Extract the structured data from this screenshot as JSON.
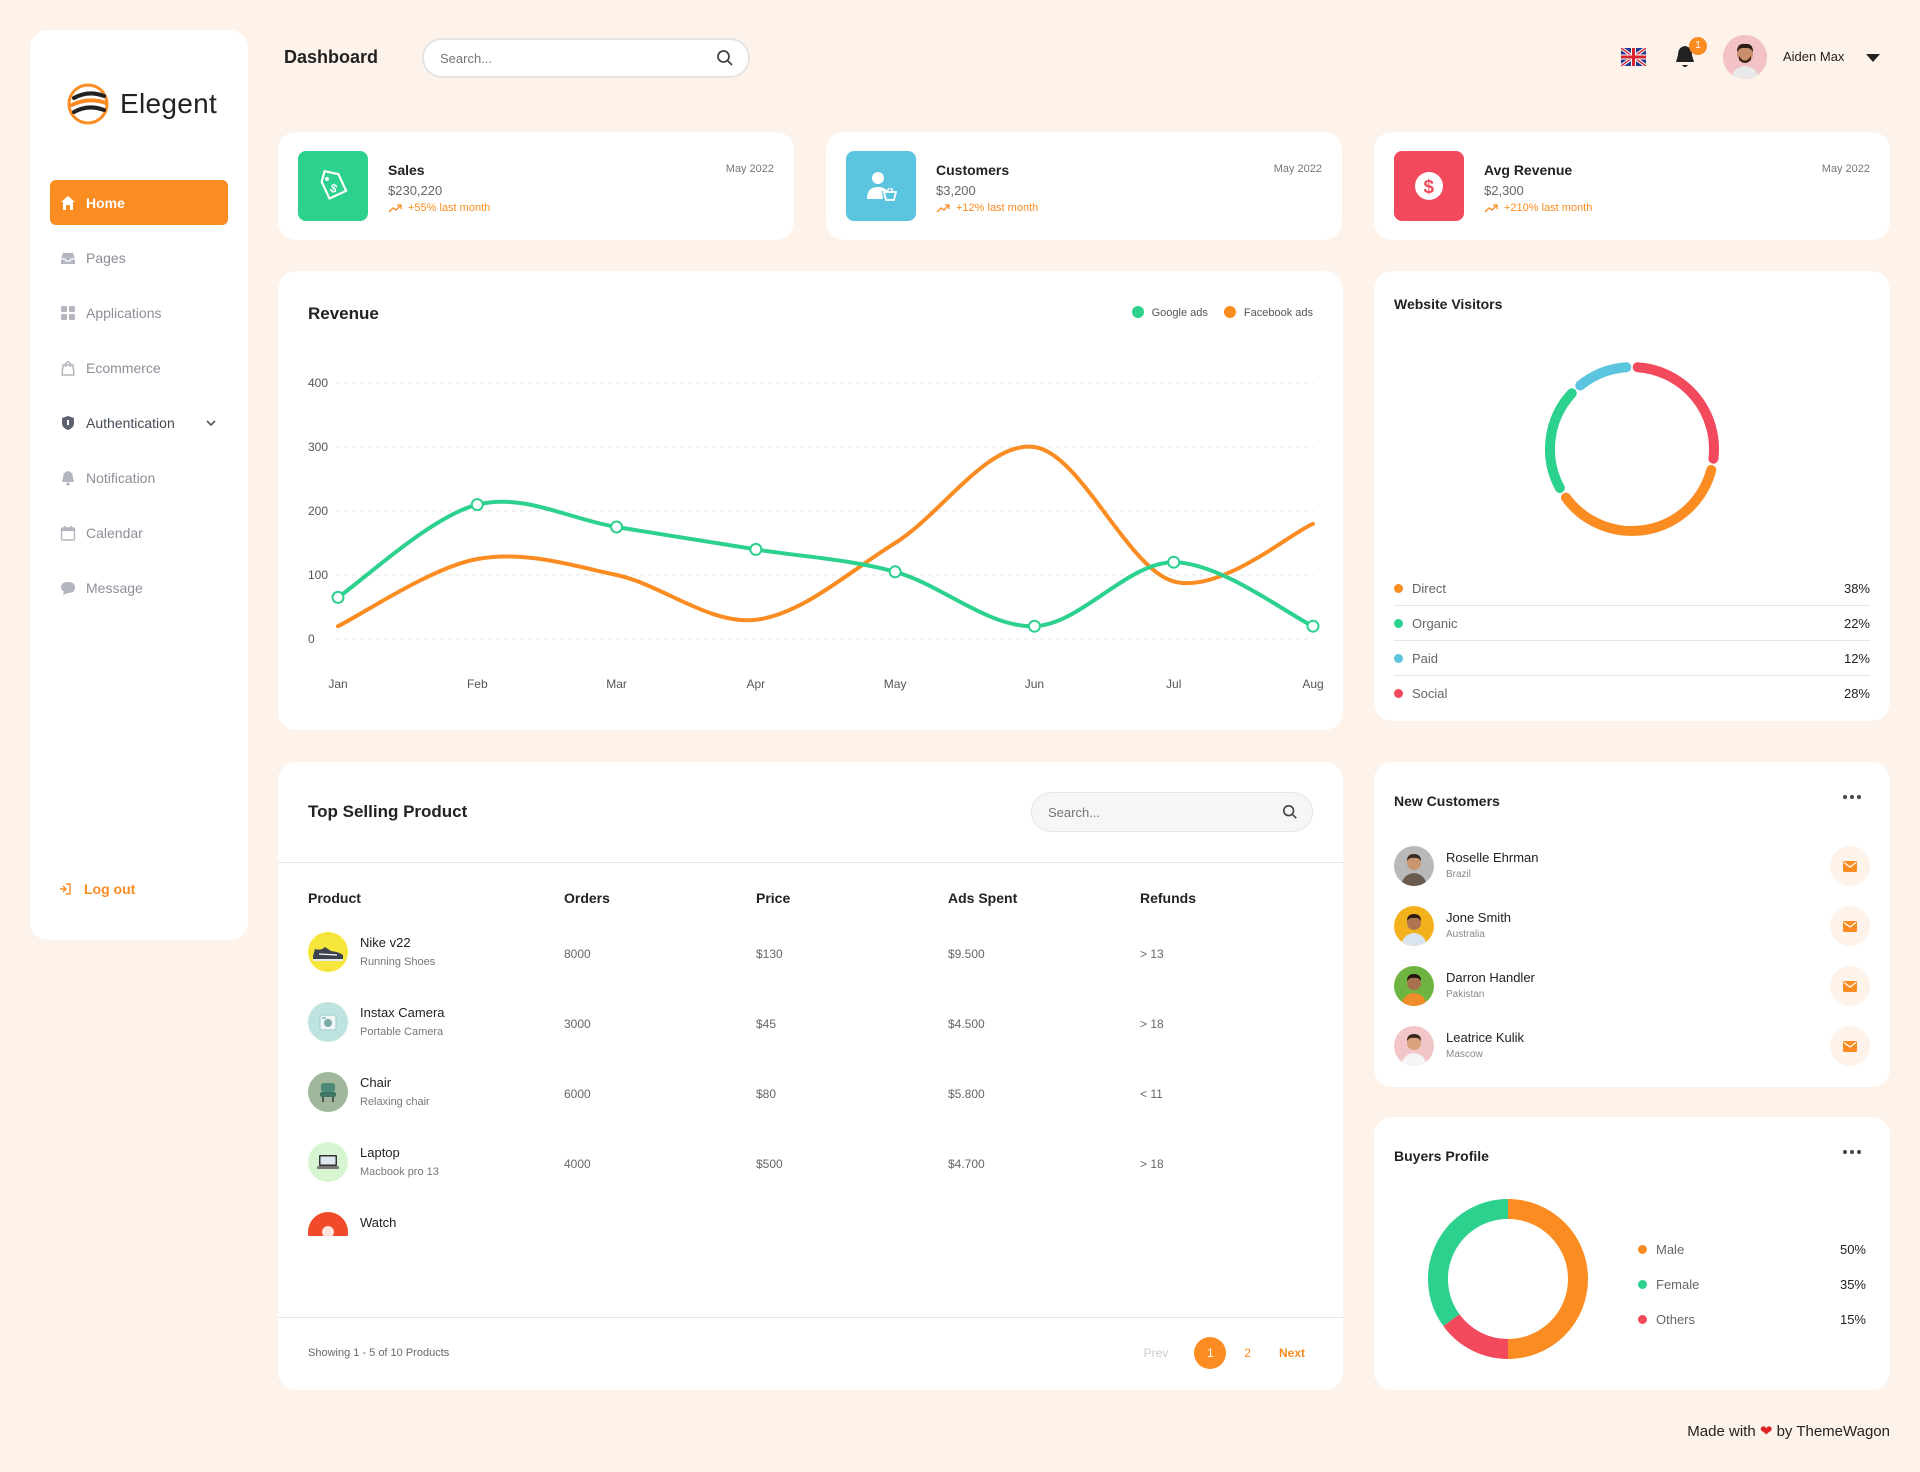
{
  "brand": {
    "name": "Elegent"
  },
  "header": {
    "title": "Dashboard",
    "search_placeholder": "Search...",
    "notification_count": "1",
    "user_name": "Aiden Max"
  },
  "sidebar": {
    "items": [
      {
        "label": "Home",
        "icon": "home-icon",
        "active": true
      },
      {
        "label": "Pages",
        "icon": "inbox-icon"
      },
      {
        "label": "Applications",
        "icon": "grid-icon"
      },
      {
        "label": "Ecommerce",
        "icon": "shopping-bag-icon"
      },
      {
        "label": "Authentication",
        "icon": "shield-icon",
        "has_submenu": true
      },
      {
        "label": "Notification",
        "icon": "bell-icon"
      },
      {
        "label": "Calendar",
        "icon": "calendar-icon"
      },
      {
        "label": "Message",
        "icon": "chat-icon"
      }
    ],
    "logout_label": "Log out"
  },
  "stats": [
    {
      "title": "Sales",
      "value": "$230,220",
      "change": "+55% last month",
      "date": "May 2022",
      "color": "#2bd18d",
      "icon": "price-tag-icon"
    },
    {
      "title": "Customers",
      "value": "$3,200",
      "change": "+12% last month",
      "date": "May 2022",
      "color": "#5bc4de",
      "icon": "customer-basket-icon"
    },
    {
      "title": "Avg Revenue",
      "value": "$2,300",
      "change": "+210% last month",
      "date": "May 2022",
      "color": "#f3495d",
      "icon": "dollar-coin-icon"
    }
  ],
  "revenue": {
    "title": "Revenue",
    "chart_data": {
      "type": "line",
      "categories": [
        "Jan",
        "Feb",
        "Mar",
        "Apr",
        "May",
        "Jun",
        "Jul",
        "Aug"
      ],
      "series": [
        {
          "name": "Google ads",
          "color": "#2bd18d",
          "values": [
            65,
            210,
            175,
            140,
            105,
            20,
            120,
            20
          ]
        },
        {
          "name": "Facebook ads",
          "color": "#fb8c22",
          "values": [
            20,
            125,
            100,
            30,
            150,
            300,
            90,
            180
          ]
        }
      ],
      "y_ticks": [
        0,
        100,
        200,
        300,
        400
      ],
      "ylim": [
        0,
        400
      ],
      "grid": true,
      "legend": "top-right"
    }
  },
  "visitors": {
    "title": "Website Visitors",
    "chart_data": {
      "type": "pie",
      "labels": [
        "Direct",
        "Organic",
        "Paid",
        "Social"
      ],
      "values": [
        38,
        22,
        12,
        28
      ],
      "value_labels": [
        "38%",
        "22%",
        "12%",
        "28%"
      ],
      "colors": [
        "#fb8c22",
        "#2bd18d",
        "#5bc4de",
        "#f3495d"
      ]
    }
  },
  "products": {
    "title": "Top Selling Product",
    "search_placeholder": "Search...",
    "columns": [
      "Product",
      "Orders",
      "Price",
      "Ads Spent",
      "Refunds"
    ],
    "rows": [
      {
        "name": "Nike v22",
        "sub": "Running Shoes",
        "orders": "8000",
        "price": "$130",
        "ads": "$9.500",
        "refunds": "> 13",
        "thumb_color": "#f6e53a",
        "icon": "shoe-icon"
      },
      {
        "name": "Instax Camera",
        "sub": "Portable Camera",
        "orders": "3000",
        "price": "$45",
        "ads": "$4.500",
        "refunds": "> 18",
        "thumb_color": "#bfe3e0",
        "icon": "camera-icon"
      },
      {
        "name": "Chair",
        "sub": "Relaxing chair",
        "orders": "6000",
        "price": "$80",
        "ads": "$5.800",
        "refunds": "< 11",
        "thumb_color": "#9fb79a",
        "icon": "chair-icon"
      },
      {
        "name": "Laptop",
        "sub": "Macbook pro 13",
        "orders": "4000",
        "price": "$500",
        "ads": "$4.700",
        "refunds": "> 18",
        "thumb_color": "#d6f5d0",
        "icon": "laptop-icon"
      },
      {
        "name": "Watch",
        "sub": "",
        "orders": "",
        "price": "",
        "ads": "",
        "refunds": "",
        "thumb_color": "#f04a2a",
        "icon": "watch-icon"
      }
    ],
    "showing": "Showing 1 - 5 of 10 Products",
    "pager": {
      "prev": "Prev",
      "page1": "1",
      "page2": "2",
      "next": "Next"
    }
  },
  "customers": {
    "title": "New Customers",
    "items": [
      {
        "name": "Roselle Ehrman",
        "location": "Brazil",
        "bg": "#b9b9b9"
      },
      {
        "name": "Jone Smith",
        "location": "Australia",
        "bg": "#f3b21c"
      },
      {
        "name": "Darron Handler",
        "location": "Pakistan",
        "bg": "#6fb441"
      },
      {
        "name": "Leatrice Kulik",
        "location": "Mascow",
        "bg": "#f2c6c8"
      }
    ]
  },
  "buyers": {
    "title": "Buyers Profile",
    "chart_data": {
      "type": "pie",
      "labels": [
        "Male",
        "Female",
        "Others"
      ],
      "values": [
        50,
        35,
        15
      ],
      "value_labels": [
        "50%",
        "35%",
        "15%"
      ],
      "colors": [
        "#fb8c22",
        "#2bd18d",
        "#f3495d"
      ]
    }
  },
  "footer": {
    "prefix": "Made with",
    "suffix": "by ThemeWagon"
  },
  "colors": {
    "accent": "#fb8c22",
    "background": "#fdf3ea"
  }
}
